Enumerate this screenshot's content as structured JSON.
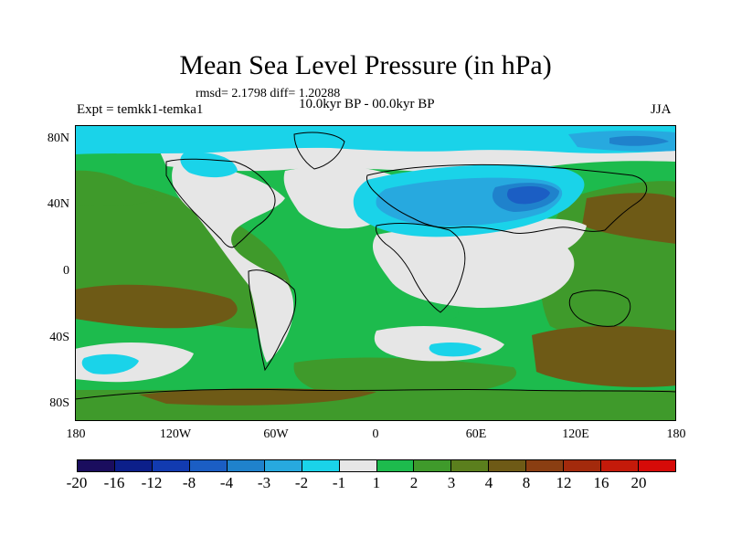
{
  "title": "Mean Sea Level Pressure (in hPa)",
  "stats": "rmsd= 2.1798 diff= 1.20288",
  "experiment": "Expt = temkk1-temka1",
  "period": "10.0kyr BP - 00.0kyr BP",
  "season": "JJA",
  "lat_labels": [
    "80N",
    "40N",
    "0",
    "40S",
    "80S"
  ],
  "lon_labels": [
    "180",
    "120W",
    "60W",
    "0",
    "60E",
    "120E",
    "180"
  ],
  "colorbar": {
    "colors": [
      "#1a0d5e",
      "#0c1f8a",
      "#123bb0",
      "#1b5ec4",
      "#1f82cc",
      "#27a9df",
      "#1ad3e9",
      "#e6e6e6",
      "#1dbb4d",
      "#3f9a2b",
      "#5b7f1d",
      "#6e5a16",
      "#8a3e12",
      "#a32a0c",
      "#c41a0a",
      "#d60b08"
    ],
    "labels": [
      "-20",
      "-16",
      "-12",
      "-8",
      "-4",
      "-3",
      "-2",
      "-1",
      "1",
      "2",
      "3",
      "4",
      "8",
      "12",
      "16",
      "20"
    ]
  },
  "palette": {
    "land_white": "#e6e6e6",
    "green": "#1dbb4d",
    "dark_green": "#3f9a2b",
    "olive": "#5b7f1d",
    "brown": "#6e5a16",
    "cyan": "#1ad3e9",
    "light_blue": "#27a9df",
    "blue": "#1f82cc",
    "deep_blue": "#1b5ec4"
  }
}
